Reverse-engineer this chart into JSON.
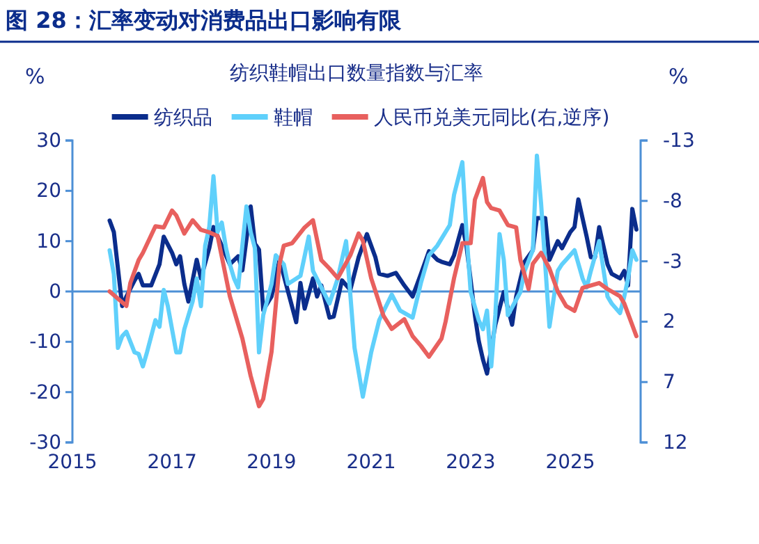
{
  "chart_data": {
    "type": "line",
    "title": "图 28：汇率变动对消费品出口影响有限",
    "subtitle": "纺织鞋帽出口数量指数与汇率",
    "ylabel": "%",
    "y2label": "%",
    "xlim": [
      "2015-01",
      "2026-06"
    ],
    "xticks": [
      "2015",
      "2017",
      "2019",
      "2021",
      "2023",
      "2025"
    ],
    "ylim": [
      -30,
      30
    ],
    "yticks": [
      -30,
      -20,
      -10,
      0,
      10,
      20,
      30
    ],
    "y2lim": [
      12,
      -13
    ],
    "y2ticks": [
      12,
      7,
      2,
      -3,
      -8,
      -13
    ],
    "ref_lines": [
      {
        "axis": "y",
        "value": 0,
        "color": "#4d8fd6"
      }
    ],
    "legend": "top",
    "grid": false,
    "marker": "none",
    "line_style": "solid",
    "series": [
      {
        "name": "纺织品",
        "color": "#0b2d8c",
        "x": [
          "2015-10",
          "2015-11",
          "2016-01",
          "2016-02",
          "2016-04",
          "2016-05",
          "2016-06",
          "2016-08",
          "2016-10",
          "2016-11",
          "2017-01",
          "2017-02",
          "2017-03",
          "2017-04",
          "2017-05",
          "2017-07",
          "2017-08",
          "2017-10",
          "2017-11",
          "2018-01",
          "2018-03",
          "2018-05",
          "2018-06",
          "2018-08",
          "2018-09",
          "2018-10",
          "2018-11",
          "2019-01",
          "2019-03",
          "2019-07",
          "2019-08",
          "2019-09",
          "2019-11",
          "2019-12",
          "2020-01",
          "2020-03",
          "2020-04",
          "2020-06",
          "2020-08",
          "2020-10",
          "2020-12",
          "2021-02",
          "2021-03",
          "2021-05",
          "2021-07",
          "2021-09",
          "2021-11",
          "2022-01",
          "2022-03",
          "2022-05",
          "2022-06",
          "2022-08",
          "2022-09",
          "2022-11",
          "2022-12",
          "2023-02",
          "2023-03",
          "2023-04",
          "2023-05",
          "2023-07",
          "2023-09",
          "2023-11",
          "2023-12",
          "2024-02",
          "2024-04",
          "2024-05",
          "2024-07",
          "2024-08",
          "2024-10",
          "2024-11",
          "2025-01",
          "2025-02",
          "2025-03",
          "2025-05",
          "2025-06",
          "2025-07",
          "2025-08",
          "2025-10",
          "2025-11",
          "2026-01",
          "2026-02",
          "2026-03",
          "2026-04",
          "2026-05"
        ],
        "values": [
          14.1,
          11.8,
          -2.9,
          -1,
          2.2,
          3.5,
          1.2,
          1.2,
          5.4,
          10.9,
          7.7,
          5.4,
          7,
          1.5,
          -2,
          6.3,
          2.6,
          8.6,
          12.8,
          9.1,
          5.4,
          7,
          4.2,
          16.9,
          9.5,
          8.3,
          -3.7,
          -1,
          6.3,
          -6.1,
          1.7,
          -3.4,
          2.6,
          -1,
          1.2,
          -5.2,
          -5,
          2.2,
          0.3,
          6.8,
          11.4,
          6.8,
          3.5,
          3.1,
          3.7,
          1.2,
          -1,
          3.5,
          8,
          6.3,
          5.9,
          5.4,
          7.2,
          13.2,
          9.1,
          -4.7,
          -9.8,
          -13.5,
          -16.3,
          -6.6,
          -0.1,
          -6.6,
          -1,
          5.9,
          8.2,
          14.6,
          14.6,
          6.3,
          10,
          8.6,
          11.8,
          12.8,
          18.3,
          10.9,
          6.8,
          6.8,
          12.8,
          5.4,
          3.5,
          2.6,
          4.1,
          1.2,
          16.4,
          12.3
        ]
      },
      {
        "name": "鞋帽",
        "color": "#5fd0fb",
        "x": [
          "2015-10",
          "2015-11",
          "2015-12",
          "2016-01",
          "2016-02",
          "2016-04",
          "2016-05",
          "2016-06",
          "2016-07",
          "2016-09",
          "2016-10",
          "2016-11",
          "2016-12",
          "2017-02",
          "2017-03",
          "2017-04",
          "2017-06",
          "2017-07",
          "2017-08",
          "2017-09",
          "2017-10",
          "2017-11",
          "2017-12",
          "2018-01",
          "2018-02",
          "2018-03",
          "2018-04",
          "2018-05",
          "2018-06",
          "2018-07",
          "2018-08",
          "2018-09",
          "2018-10",
          "2018-11",
          "2019-01",
          "2019-02",
          "2019-04",
          "2019-05",
          "2019-08",
          "2019-10",
          "2019-11",
          "2020-01",
          "2020-03",
          "2020-05",
          "2020-07",
          "2020-09",
          "2020-11",
          "2021-01",
          "2021-03",
          "2021-06",
          "2021-08",
          "2021-11",
          "2022-01",
          "2022-03",
          "2022-05",
          "2022-08",
          "2022-09",
          "2022-11",
          "2022-12",
          "2023-01",
          "2023-03",
          "2023-04",
          "2023-05",
          "2023-06",
          "2023-07",
          "2023-08",
          "2023-09",
          "2023-10",
          "2024-01",
          "2024-02",
          "2024-04",
          "2024-05",
          "2024-06",
          "2024-07",
          "2024-08",
          "2024-10",
          "2024-11",
          "2024-12",
          "2025-02",
          "2025-04",
          "2025-05",
          "2025-06",
          "2025-08",
          "2025-10",
          "2025-11",
          "2026-01",
          "2026-02",
          "2026-03",
          "2026-04",
          "2026-05"
        ],
        "values": [
          8.2,
          3.5,
          -11.2,
          -8.9,
          -8,
          -12.1,
          -12.4,
          -14.9,
          -12.1,
          -5.7,
          -7,
          0.3,
          -2.9,
          -12.1,
          -12.1,
          -7.5,
          -2,
          2.6,
          -2.9,
          9.1,
          12.8,
          22.9,
          11.8,
          13.7,
          8.6,
          5.4,
          2.6,
          0.8,
          9.1,
          16.9,
          11.8,
          8.6,
          -12.1,
          -4.7,
          1.5,
          7.2,
          5.4,
          1.5,
          3.1,
          10.9,
          4.1,
          0.8,
          -2.4,
          2.6,
          10,
          -11.2,
          -20.9,
          -12.1,
          -5.7,
          -0.6,
          -3.8,
          -5.2,
          1.7,
          7.2,
          9.1,
          13.2,
          19.2,
          25.7,
          11.8,
          -0.1,
          -5.7,
          -7.5,
          -3.8,
          -14.9,
          -4.7,
          11.4,
          6.3,
          -4.7,
          -0.1,
          4.1,
          8.2,
          27,
          17.4,
          5.4,
          -7,
          4.1,
          5.4,
          6.3,
          8.2,
          2.6,
          0.8,
          4.1,
          10,
          -1,
          -2.4,
          -4.3,
          -1,
          2.6,
          8.2,
          6.3
        ]
      },
      {
        "name": "人民币兑美元同比(右,逆序)",
        "color": "#e8605e",
        "axis": "y2",
        "x": [
          "2015-10",
          "2016-02",
          "2016-03",
          "2016-05",
          "2016-06",
          "2016-09",
          "2016-11",
          "2017-01",
          "2017-02",
          "2017-04",
          "2017-06",
          "2017-08",
          "2017-10",
          "2017-12",
          "2018-03",
          "2018-06",
          "2018-08",
          "2018-10",
          "2018-11",
          "2019-01",
          "2019-03",
          "2019-04",
          "2019-06",
          "2019-09",
          "2019-11",
          "2020-01",
          "2020-03",
          "2020-05",
          "2020-08",
          "2020-10",
          "2020-11",
          "2021-01",
          "2021-04",
          "2021-06",
          "2021-09",
          "2021-11",
          "2022-01",
          "2022-03",
          "2022-06",
          "2022-07",
          "2022-09",
          "2022-11",
          "2023-01",
          "2023-02",
          "2023-04",
          "2023-05",
          "2023-06",
          "2023-08",
          "2023-10",
          "2023-12",
          "2024-01",
          "2024-03",
          "2024-04",
          "2024-06",
          "2024-08",
          "2024-10",
          "2024-12",
          "2025-02",
          "2025-04",
          "2025-06",
          "2025-08",
          "2025-10",
          "2026-01",
          "2026-02",
          "2026-05"
        ],
        "values": [
          -0.5,
          0.7,
          -1.2,
          -3.1,
          -3.7,
          -5.9,
          -5.8,
          -7.2,
          -6.8,
          -5.3,
          -6.4,
          -5.6,
          -5.4,
          -5.1,
          -0.1,
          3.4,
          6.5,
          9,
          8.4,
          4.5,
          -2.8,
          -4.3,
          -4.5,
          -5.8,
          -6.4,
          -3.1,
          -2.4,
          -1.6,
          -3.5,
          -5.3,
          -4.7,
          -1.6,
          1.5,
          2.6,
          1.8,
          3.2,
          4,
          4.9,
          3.4,
          2,
          -1.6,
          -4.5,
          -4.5,
          -8.1,
          -9.9,
          -7.9,
          -7.4,
          -7.2,
          -6,
          -5.8,
          -3.1,
          -0.7,
          -2.8,
          -3.7,
          -2.4,
          -0.5,
          0.7,
          1.1,
          -0.8,
          -1,
          -1.2,
          -0.7,
          -0.1,
          0.5,
          3.2
        ]
      }
    ]
  }
}
